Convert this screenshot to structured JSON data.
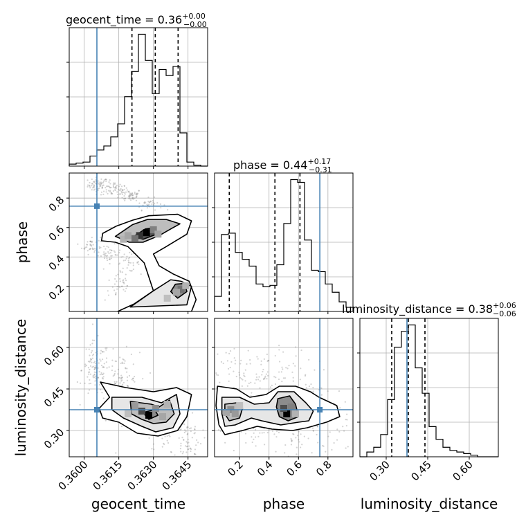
{
  "colors": {
    "truth": "#4682b4",
    "hist": "#000000",
    "contour": "#000000",
    "grid": "#b0b0b0",
    "scatter": "#808080"
  },
  "chart_data": {
    "type": "corner",
    "parameters": [
      "geocent_time",
      "phase",
      "luminosity_distance"
    ],
    "truths": {
      "geocent_time": 0.36055,
      "phase": 0.745,
      "luminosity_distance": 0.375
    },
    "ranges": {
      "geocent_time": [
        0.35935,
        0.36535
      ],
      "phase": [
        0.03,
        0.97
      ],
      "luminosity_distance": [
        0.205,
        0.705
      ]
    },
    "titles": {
      "geocent_time": {
        "main": "geocent_time = 0.36",
        "plus": "+0.00",
        "minus": "−0.00"
      },
      "phase": {
        "main": "phase = 0.44",
        "plus": "+0.17",
        "minus": "−0.31"
      },
      "luminosity_distance": {
        "main": "luminosity_distance = 0.38",
        "plus": "+0.06",
        "minus": "−0.06"
      }
    },
    "axis_labels": {
      "geocent_time": "geocent_time",
      "phase": "phase",
      "luminosity_distance": "luminosity_distance"
    },
    "ticks": {
      "geocent_time": [
        {
          "v": 0.36,
          "label": "0.3600"
        },
        {
          "v": 0.3615,
          "label": "0.3615"
        },
        {
          "v": 0.363,
          "label": "0.3630"
        },
        {
          "v": 0.3645,
          "label": "0.3645"
        }
      ],
      "phase": [
        {
          "v": 0.2,
          "label": "0.2"
        },
        {
          "v": 0.4,
          "label": "0.4"
        },
        {
          "v": 0.6,
          "label": "0.6"
        },
        {
          "v": 0.8,
          "label": "0.8"
        }
      ],
      "luminosity_distance": [
        {
          "v": 0.3,
          "label": "0.30"
        },
        {
          "v": 0.45,
          "label": "0.45"
        },
        {
          "v": 0.6,
          "label": "0.60"
        }
      ]
    },
    "quantiles": {
      "geocent_time": [
        0.36207,
        0.36308,
        0.36407
      ],
      "phase": [
        0.13,
        0.44,
        0.61
      ],
      "luminosity_distance": [
        0.32,
        0.38,
        0.44
      ]
    },
    "histograms": {
      "geocent_time": {
        "edges": [
          0.35935,
          0.35965,
          0.35995,
          0.36025,
          0.36055,
          0.36085,
          0.36115,
          0.36145,
          0.36175,
          0.36205,
          0.36235,
          0.36265,
          0.36295,
          0.36325,
          0.36355,
          0.36385,
          0.36415,
          0.36445,
          0.36475,
          0.36505,
          0.36535
        ],
        "counts": [
          2,
          3,
          4,
          10,
          16,
          20,
          29,
          42,
          69,
          94,
          131,
          105,
          72,
          96,
          90,
          99,
          33,
          4,
          1,
          0
        ]
      },
      "phase": {
        "edges": [
          0.03,
          0.077,
          0.124,
          0.171,
          0.218,
          0.265,
          0.312,
          0.359,
          0.406,
          0.453,
          0.5,
          0.547,
          0.594,
          0.641,
          0.688,
          0.735,
          0.782,
          0.829,
          0.876,
          0.923,
          0.97
        ],
        "counts": [
          11,
          56,
          57,
          43,
          38,
          33,
          20,
          18,
          19,
          34,
          64,
          96,
          94,
          52,
          30,
          29,
          20,
          14,
          7,
          3
        ]
      },
      "luminosity_distance": {
        "edges": [
          0.205,
          0.23,
          0.255,
          0.28,
          0.305,
          0.33,
          0.355,
          0.38,
          0.405,
          0.43,
          0.455,
          0.48,
          0.505,
          0.53,
          0.555,
          0.58,
          0.605,
          0.63,
          0.655,
          0.68,
          0.705
        ],
        "counts": [
          0,
          3,
          6,
          14,
          36,
          69,
          79,
          83,
          56,
          40,
          19,
          11,
          6,
          4,
          3,
          2,
          1,
          0,
          0,
          0
        ]
      }
    },
    "contours": {
      "phase_vs_geocent_time": [
        [
          [
            0.36145,
            0.03
          ],
          [
            0.36205,
            0.03
          ],
          [
            0.36465,
            0.03
          ],
          [
            0.36485,
            0.11
          ],
          [
            0.36455,
            0.235
          ],
          [
            0.36385,
            0.285
          ],
          [
            0.36325,
            0.34
          ],
          [
            0.363,
            0.42
          ],
          [
            0.36355,
            0.47
          ],
          [
            0.36445,
            0.555
          ],
          [
            0.36465,
            0.645
          ],
          [
            0.36405,
            0.69
          ],
          [
            0.3628,
            0.68
          ],
          [
            0.3621,
            0.65
          ],
          [
            0.3614,
            0.61
          ],
          [
            0.3608,
            0.56
          ],
          [
            0.36075,
            0.51
          ],
          [
            0.36135,
            0.5
          ],
          [
            0.3619,
            0.47
          ],
          [
            0.3626,
            0.36
          ],
          [
            0.363,
            0.17
          ],
          [
            0.36215,
            0.08
          ],
          [
            0.36145,
            0.03
          ]
        ],
        [
          [
            0.362,
            0.06
          ],
          [
            0.36445,
            0.075
          ],
          [
            0.36465,
            0.2
          ],
          [
            0.3642,
            0.235
          ],
          [
            0.36375,
            0.245
          ],
          [
            0.363,
            0.17
          ],
          [
            0.362,
            0.06
          ]
        ],
        [
          [
            0.36135,
            0.54
          ],
          [
            0.3621,
            0.62
          ],
          [
            0.36275,
            0.655
          ],
          [
            0.36355,
            0.655
          ],
          [
            0.36415,
            0.625
          ],
          [
            0.36375,
            0.59
          ],
          [
            0.36325,
            0.545
          ],
          [
            0.36255,
            0.5
          ],
          [
            0.36195,
            0.5
          ],
          [
            0.36135,
            0.54
          ]
        ],
        [
          [
            0.36405,
            0.12
          ],
          [
            0.36445,
            0.165
          ],
          [
            0.36435,
            0.22
          ],
          [
            0.36395,
            0.215
          ],
          [
            0.36375,
            0.165
          ],
          [
            0.36405,
            0.12
          ]
        ],
        [
          [
            0.36215,
            0.54
          ],
          [
            0.36265,
            0.59
          ],
          [
            0.3631,
            0.6
          ],
          [
            0.36315,
            0.555
          ],
          [
            0.36255,
            0.52
          ],
          [
            0.36215,
            0.54
          ]
        ]
      ],
      "luminosity_distance_vs_geocent_time": [
        [
          [
            0.3607,
            0.475
          ],
          [
            0.3618,
            0.455
          ],
          [
            0.363,
            0.44
          ],
          [
            0.364,
            0.455
          ],
          [
            0.36465,
            0.43
          ],
          [
            0.36445,
            0.35
          ],
          [
            0.36405,
            0.3
          ],
          [
            0.3632,
            0.28
          ],
          [
            0.3623,
            0.29
          ],
          [
            0.3615,
            0.33
          ],
          [
            0.3608,
            0.345
          ],
          [
            0.36065,
            0.38
          ],
          [
            0.3611,
            0.42
          ],
          [
            0.3607,
            0.475
          ]
        ],
        [
          [
            0.3612,
            0.42
          ],
          [
            0.3625,
            0.42
          ],
          [
            0.36335,
            0.4
          ],
          [
            0.364,
            0.43
          ],
          [
            0.36415,
            0.36
          ],
          [
            0.36385,
            0.31
          ],
          [
            0.3631,
            0.295
          ],
          [
            0.3625,
            0.315
          ],
          [
            0.3617,
            0.345
          ],
          [
            0.3612,
            0.375
          ],
          [
            0.3612,
            0.42
          ]
        ],
        [
          [
            0.362,
            0.405
          ],
          [
            0.3629,
            0.395
          ],
          [
            0.36325,
            0.385
          ],
          [
            0.3637,
            0.41
          ],
          [
            0.3639,
            0.36
          ],
          [
            0.36355,
            0.33
          ],
          [
            0.363,
            0.325
          ],
          [
            0.3625,
            0.34
          ],
          [
            0.36205,
            0.36
          ],
          [
            0.362,
            0.405
          ]
        ],
        [
          [
            0.36255,
            0.365
          ],
          [
            0.36305,
            0.375
          ],
          [
            0.3632,
            0.355
          ],
          [
            0.3628,
            0.34
          ],
          [
            0.36255,
            0.365
          ]
        ]
      ],
      "luminosity_distance_vs_phase": [
        [
          [
            0.05,
            0.46
          ],
          [
            0.18,
            0.45
          ],
          [
            0.27,
            0.42
          ],
          [
            0.38,
            0.43
          ],
          [
            0.47,
            0.46
          ],
          [
            0.58,
            0.46
          ],
          [
            0.68,
            0.44
          ],
          [
            0.74,
            0.42
          ],
          [
            0.86,
            0.39
          ],
          [
            0.88,
            0.35
          ],
          [
            0.79,
            0.33
          ],
          [
            0.66,
            0.31
          ],
          [
            0.56,
            0.3
          ],
          [
            0.42,
            0.305
          ],
          [
            0.32,
            0.315
          ],
          [
            0.22,
            0.3
          ],
          [
            0.1,
            0.285
          ],
          [
            0.06,
            0.32
          ],
          [
            0.04,
            0.39
          ],
          [
            0.05,
            0.46
          ]
        ],
        [
          [
            0.08,
            0.42
          ],
          [
            0.2,
            0.42
          ],
          [
            0.3,
            0.395
          ],
          [
            0.4,
            0.4
          ],
          [
            0.46,
            0.44
          ],
          [
            0.57,
            0.44
          ],
          [
            0.65,
            0.4
          ],
          [
            0.7,
            0.37
          ],
          [
            0.67,
            0.335
          ],
          [
            0.6,
            0.33
          ],
          [
            0.48,
            0.32
          ],
          [
            0.35,
            0.335
          ],
          [
            0.28,
            0.345
          ],
          [
            0.17,
            0.32
          ],
          [
            0.1,
            0.315
          ],
          [
            0.08,
            0.36
          ],
          [
            0.08,
            0.42
          ]
        ],
        [
          [
            0.1,
            0.395
          ],
          [
            0.18,
            0.4
          ],
          [
            0.22,
            0.38
          ],
          [
            0.2,
            0.345
          ],
          [
            0.13,
            0.335
          ],
          [
            0.1,
            0.36
          ],
          [
            0.1,
            0.395
          ]
        ],
        [
          [
            0.46,
            0.415
          ],
          [
            0.54,
            0.425
          ],
          [
            0.58,
            0.395
          ],
          [
            0.6,
            0.35
          ],
          [
            0.53,
            0.335
          ],
          [
            0.47,
            0.35
          ],
          [
            0.45,
            0.385
          ],
          [
            0.46,
            0.415
          ]
        ]
      ]
    },
    "density": {
      "phase_vs_geocent_time": [
        [
          0.3627,
          0.565,
          1.0
        ],
        [
          0.3624,
          0.545,
          0.8
        ],
        [
          0.3622,
          0.525,
          0.55
        ],
        [
          0.363,
          0.585,
          0.5
        ],
        [
          0.3632,
          0.555,
          0.35
        ],
        [
          0.3642,
          0.18,
          0.55
        ],
        [
          0.364,
          0.16,
          0.35
        ],
        [
          0.3644,
          0.205,
          0.3
        ],
        [
          0.3617,
          0.52,
          0.3
        ],
        [
          0.3636,
          0.12,
          0.25
        ],
        [
          0.3619,
          0.545,
          0.35
        ]
      ],
      "luminosity_distance_vs_geocent_time": [
        [
          0.3628,
          0.355,
          1.0
        ],
        [
          0.3625,
          0.37,
          0.7
        ],
        [
          0.3631,
          0.38,
          0.45
        ],
        [
          0.3622,
          0.39,
          0.4
        ],
        [
          0.3634,
          0.35,
          0.35
        ],
        [
          0.3636,
          0.395,
          0.3
        ],
        [
          0.3619,
          0.36,
          0.25
        ]
      ],
      "luminosity_distance_vs_phase": [
        [
          0.52,
          0.36,
          1.0
        ],
        [
          0.5,
          0.38,
          0.7
        ],
        [
          0.55,
          0.385,
          0.5
        ],
        [
          0.14,
          0.375,
          0.45
        ],
        [
          0.17,
          0.36,
          0.4
        ],
        [
          0.11,
          0.365,
          0.35
        ],
        [
          0.58,
          0.36,
          0.3
        ],
        [
          0.2,
          0.39,
          0.25
        ]
      ]
    },
    "scatter_regions": {
      "phase_vs_geocent_time": [
        {
          "cx": 0.3606,
          "cy": 0.89,
          "sx": 0.00022,
          "sy": 0.025,
          "n": 60
        },
        {
          "cx": 0.3613,
          "cy": 0.86,
          "sx": 0.0003,
          "sy": 0.025,
          "n": 60
        },
        {
          "cx": 0.362,
          "cy": 0.82,
          "sx": 0.00025,
          "sy": 0.02,
          "n": 50
        },
        {
          "cx": 0.3628,
          "cy": 0.76,
          "sx": 0.0003,
          "sy": 0.02,
          "n": 35
        },
        {
          "cx": 0.3603,
          "cy": 0.48,
          "sx": 0.0002,
          "sy": 0.03,
          "n": 40
        },
        {
          "cx": 0.3611,
          "cy": 0.42,
          "sx": 0.00025,
          "sy": 0.03,
          "n": 40
        },
        {
          "cx": 0.3619,
          "cy": 0.36,
          "sx": 0.00025,
          "sy": 0.03,
          "n": 35
        },
        {
          "cx": 0.3615,
          "cy": 0.2,
          "sx": 0.0003,
          "sy": 0.05,
          "n": 35
        }
      ],
      "luminosity_distance_vs_geocent_time": [
        {
          "cx": 0.3605,
          "cy": 0.52,
          "sx": 0.0003,
          "sy": 0.05,
          "n": 110
        },
        {
          "cx": 0.3616,
          "cy": 0.46,
          "sx": 0.0004,
          "sy": 0.06,
          "n": 120
        },
        {
          "cx": 0.3635,
          "cy": 0.33,
          "sx": 0.0004,
          "sy": 0.06,
          "n": 110
        },
        {
          "cx": 0.3645,
          "cy": 0.27,
          "sx": 0.0003,
          "sy": 0.04,
          "n": 60
        }
      ],
      "luminosity_distance_vs_phase": [
        {
          "cx": 0.3,
          "cy": 0.5,
          "sx": 0.2,
          "sy": 0.05,
          "n": 140
        },
        {
          "cx": 0.5,
          "cy": 0.3,
          "sx": 0.25,
          "sy": 0.05,
          "n": 140
        },
        {
          "cx": 0.75,
          "cy": 0.38,
          "sx": 0.1,
          "sy": 0.05,
          "n": 60
        }
      ]
    },
    "grid": true
  }
}
